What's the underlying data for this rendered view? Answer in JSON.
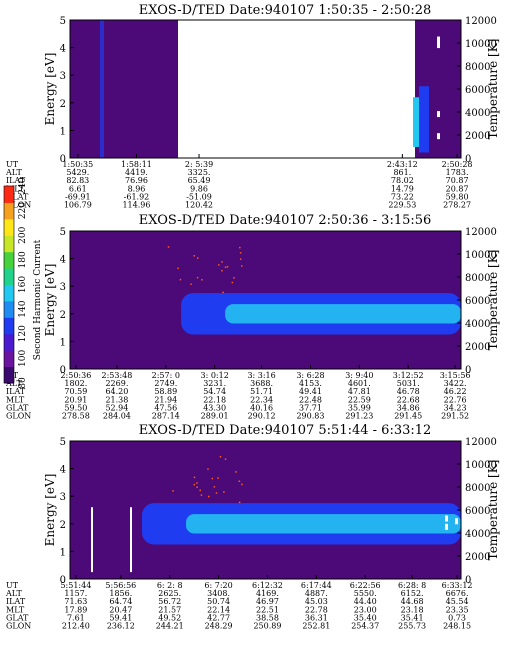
{
  "colors": {
    "background": "#4b0a78",
    "blue": "#1f3cf0",
    "cyan": "#23c8f0",
    "white": "#ffffff",
    "colorbar_stops": [
      "#3a0a6e",
      "#6a14a0",
      "#4a1ad0",
      "#1f3cf0",
      "#1e8cf0",
      "#23c8f0",
      "#20d28c",
      "#46d23c",
      "#c8e628",
      "#ffe619",
      "#f5a01e",
      "#ff2a14"
    ]
  },
  "colorbar": {
    "label": "Second Harmonic Current",
    "ticks": [
      "80",
      "100",
      "120",
      "140",
      "160",
      "180",
      "200",
      "220",
      "240"
    ]
  },
  "chart_data": [
    {
      "type": "heatmap",
      "title": "EXOS-D/TED   Date:940107   1:50:35 - 2:50:28",
      "ylabel": "Energy [eV]",
      "y2label": "Temperature [K]",
      "ylim": [
        0,
        5
      ],
      "y2lim": [
        0,
        12000
      ],
      "yticks": [
        "0",
        "1",
        "2",
        "3",
        "4",
        "5"
      ],
      "y2ticks": [
        "0",
        "2000",
        "4000",
        "6000",
        "8000",
        "10000",
        "12000"
      ],
      "data_gap": true,
      "table": {
        "row_labels": [
          "UT",
          "ALT",
          "ILAT",
          "MLT",
          "GLAT",
          "GLON"
        ],
        "columns": [
          {
            "x": 0.02,
            "vals": [
              "1:50:35",
              "5429.",
              "82.83",
              "6.61",
              "-69.91",
              "106.79"
            ]
          },
          {
            "x": 0.17,
            "vals": [
              "1:58:11",
              "4419.",
              "76.96",
              "8.96",
              "-61.92",
              "114.96"
            ]
          },
          {
            "x": 0.33,
            "vals": [
              "2: 5:39",
              "3325.",
              "65.49",
              "9.86",
              "-51.09",
              "120.42"
            ]
          },
          {
            "x": 0.85,
            "vals": [
              "2:43:12",
              "861.",
              "78.02",
              "14.79",
              "73.22",
              "229.53"
            ]
          },
          {
            "x": 0.99,
            "vals": [
              "2:50:28",
              "1783.",
              "70.87",
              "20.87",
              "59.80",
              "278.27"
            ]
          }
        ]
      }
    },
    {
      "type": "heatmap",
      "title": "EXOS-D/TED   Date:940107   2:50:36 - 3:15:56",
      "ylabel": "Energy [eV]",
      "y2label": "Temperature [K]",
      "ylim": [
        0,
        5
      ],
      "y2lim": [
        0,
        12000
      ],
      "yticks": [
        "0",
        "1",
        "2",
        "3",
        "4",
        "5"
      ],
      "y2ticks": [
        "0",
        "2000",
        "4000",
        "6000",
        "8000",
        "10000",
        "12000"
      ],
      "band": {
        "start": 0.32,
        "center": 2.0,
        "width": 1.0
      },
      "table": {
        "row_labels": [
          "UT",
          "ALT",
          "ILAT",
          "MLT",
          "GLAT",
          "GLON"
        ],
        "columns": [
          {
            "x": 0.015,
            "vals": [
              "2:50:36",
              "1802.",
              "70.59",
              "20.91",
              "59.50",
              "278.58"
            ]
          },
          {
            "x": 0.12,
            "vals": [
              "2:53:48",
              "2269.",
              "64.20",
              "21.38",
              "52.94",
              "284.04"
            ]
          },
          {
            "x": 0.245,
            "vals": [
              "2:57: 0",
              "2749.",
              "58.89",
              "21.94",
              "47.56",
              "287.14"
            ]
          },
          {
            "x": 0.37,
            "vals": [
              "3: 0:12",
              "3231.",
              "54.74",
              "22.18",
              "43.30",
              "289.01"
            ]
          },
          {
            "x": 0.49,
            "vals": [
              "3: 3:16",
              "3688.",
              "51.71",
              "22.34",
              "40.16",
              "290.12"
            ]
          },
          {
            "x": 0.615,
            "vals": [
              "3: 6:28",
              "4153.",
              "49.41",
              "22.48",
              "37.71",
              "290.83"
            ]
          },
          {
            "x": 0.74,
            "vals": [
              "3: 9:40",
              "4601.",
              "47.81",
              "22.59",
              "35.99",
              "291.23"
            ]
          },
          {
            "x": 0.865,
            "vals": [
              "3:12:52",
              "5031.",
              "46.78",
              "22.68",
              "34.86",
              "291.45"
            ]
          },
          {
            "x": 0.985,
            "vals": [
              "3:15:56",
              "3422.",
              "46.22",
              "22.76",
              "34.23",
              "291.52"
            ]
          }
        ]
      }
    },
    {
      "type": "heatmap",
      "title": "EXOS-D/TED   Date:940107   5:51:44 - 6:33:12",
      "ylabel": "Energy [eV]",
      "y2label": "Temperature [K]",
      "ylim": [
        0,
        5
      ],
      "y2lim": [
        0,
        12000
      ],
      "yticks": [
        "0",
        "1",
        "2",
        "3",
        "4",
        "5"
      ],
      "y2ticks": [
        "0",
        "2000",
        "4000",
        "6000",
        "8000",
        "10000",
        "12000"
      ],
      "band": {
        "start": 0.22,
        "center": 2.0,
        "width": 1.0
      },
      "table": {
        "row_labels": [
          "UT",
          "ALT",
          "ILAT",
          "MLT",
          "GLAT",
          "GLON"
        ],
        "columns": [
          {
            "x": 0.015,
            "vals": [
              "5:51:44",
              "1157.",
              "71.63",
              "17.89",
              "7.61",
              "212.40"
            ]
          },
          {
            "x": 0.13,
            "vals": [
              "5:56:56",
              "1856.",
              "64.74",
              "20.47",
              "59.41",
              "236.12"
            ]
          },
          {
            "x": 0.255,
            "vals": [
              "6: 2: 8",
              "2625.",
              "56.72",
              "21.57",
              "49.52",
              "244.21"
            ]
          },
          {
            "x": 0.38,
            "vals": [
              "6: 7:20",
              "3408.",
              "50.74",
              "22.14",
              "42.77",
              "248.29"
            ]
          },
          {
            "x": 0.505,
            "vals": [
              "6:12:32",
              "4169.",
              "46.97",
              "22.51",
              "38.58",
              "250.89"
            ]
          },
          {
            "x": 0.63,
            "vals": [
              "6:17:44",
              "4887.",
              "45.03",
              "22.78",
              "36.31",
              "252.81"
            ]
          },
          {
            "x": 0.755,
            "vals": [
              "6:22:56",
              "5550.",
              "44.40",
              "23.00",
              "35.40",
              "254.37"
            ]
          },
          {
            "x": 0.875,
            "vals": [
              "6:28: 8",
              "6152.",
              "44.68",
              "23.18",
              "35.41",
              "255.73"
            ]
          },
          {
            "x": 0.99,
            "vals": [
              "6:33:12",
              "6676.",
              "45.54",
              "23.35",
              "0.73",
              "248.15"
            ]
          }
        ]
      }
    }
  ]
}
